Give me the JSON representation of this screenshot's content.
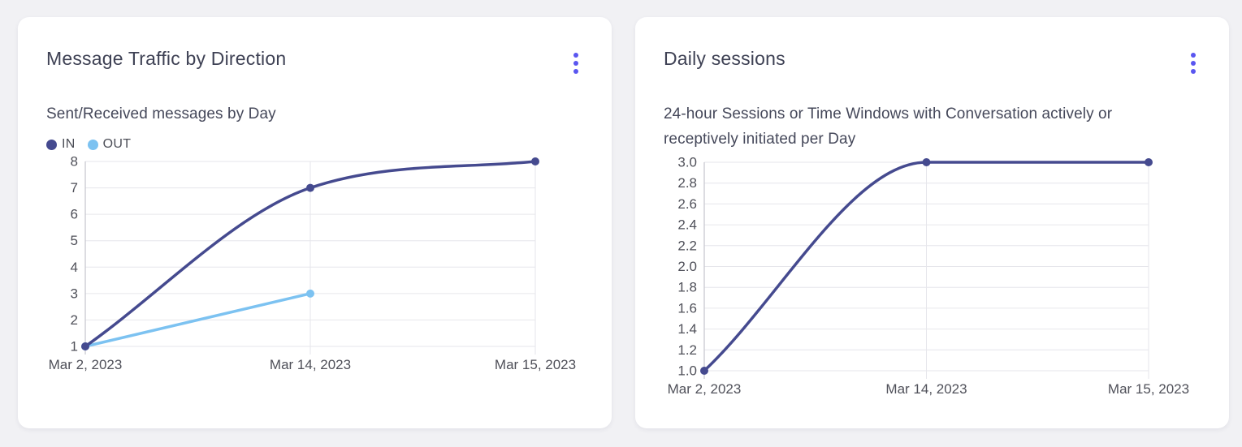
{
  "page": {
    "background_color": "#f1f1f4",
    "card_color": "#ffffff",
    "accent_color": "#5a56f0"
  },
  "cards": [
    {
      "title": "Message Traffic by Direction",
      "subtitle": "Sent/Received messages by Day",
      "menu_icon": "kebab-menu-icon"
    },
    {
      "title": "Daily sessions",
      "subtitle": "24-hour Sessions or Time Windows with Conversation actively or receptively initiated per Day",
      "menu_icon": "kebab-menu-icon"
    }
  ],
  "chart_data": [
    {
      "type": "line",
      "title": "Message Traffic by Direction",
      "subtitle": "Sent/Received messages by Day",
      "categories": [
        "Mar 2, 2023",
        "Mar 14, 2023",
        "Mar 15, 2023"
      ],
      "series": [
        {
          "name": "IN",
          "color": "#454a8f",
          "values": [
            1,
            7,
            8
          ]
        },
        {
          "name": "OUT",
          "color": "#7cc2f1",
          "values": [
            1,
            3,
            null
          ]
        }
      ],
      "ylim": [
        1,
        8
      ],
      "yticks": [
        1,
        2,
        3,
        4,
        5,
        6,
        7,
        8
      ],
      "ytick_labels": [
        "1",
        "2",
        "3",
        "4",
        "5",
        "6",
        "7",
        "8"
      ],
      "xlabel": "",
      "ylabel": "",
      "grid": true,
      "legend": true,
      "legend_position": "top-left",
      "curve": "monotone",
      "grid_color": "#e6e6eb",
      "axis_color": "#c9c9d1",
      "tick_color": "#4f5059"
    },
    {
      "type": "line",
      "title": "Daily sessions",
      "subtitle": "24-hour Sessions or Time Windows with Conversation actively or receptively initiated per Day",
      "categories": [
        "Mar 2, 2023",
        "Mar 14, 2023",
        "Mar 15, 2023"
      ],
      "series": [
        {
          "name": "Daily sessions",
          "color": "#454a8f",
          "values": [
            1,
            3,
            3
          ]
        }
      ],
      "ylim": [
        1,
        3
      ],
      "yticks": [
        1.0,
        1.2,
        1.4,
        1.6,
        1.8,
        2.0,
        2.2,
        2.4,
        2.6,
        2.8,
        3.0
      ],
      "ytick_labels": [
        "1.0",
        "1.2",
        "1.4",
        "1.6",
        "1.8",
        "2.0",
        "2.2",
        "2.4",
        "2.6",
        "2.8",
        "3.0"
      ],
      "xlabel": "",
      "ylabel": "",
      "grid": true,
      "legend": false,
      "curve": "monotone",
      "grid_color": "#e6e6eb",
      "axis_color": "#c9c9d1",
      "tick_color": "#4f5059"
    }
  ]
}
